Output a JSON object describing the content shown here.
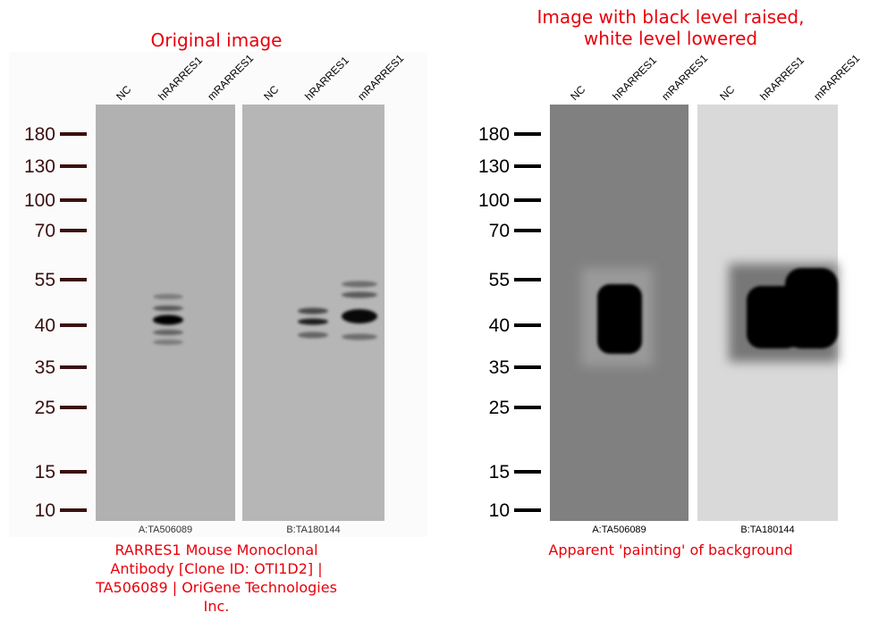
{
  "panels": [
    {
      "title": [
        "Original image"
      ],
      "lanes": [
        "NC",
        "hRARRES1",
        "mRARRES1",
        "NC",
        "hRARRES1",
        "mRARRES1"
      ],
      "markers": [
        180,
        130,
        100,
        70,
        55,
        40,
        35,
        25,
        15,
        10
      ],
      "blot_labels": [
        "A:TA506089",
        "B:TA180144"
      ],
      "caption": "RARRES1 Mouse Monoclonal Antibody [Clone ID: OTI1D2] | TA506089 | OriGene Technologies Inc."
    },
    {
      "title": [
        "Image with black level raised,",
        "white level lowered"
      ],
      "lanes": [
        "NC",
        "hRARRES1",
        "mRARRES1",
        "NC",
        "hRARRES1",
        "mRARRES1"
      ],
      "markers": [
        180,
        130,
        100,
        70,
        55,
        40,
        35,
        25,
        15,
        10
      ],
      "blot_labels": [
        "A:TA506089",
        "B:TA180144"
      ],
      "caption": "Apparent 'painting' of background"
    }
  ]
}
